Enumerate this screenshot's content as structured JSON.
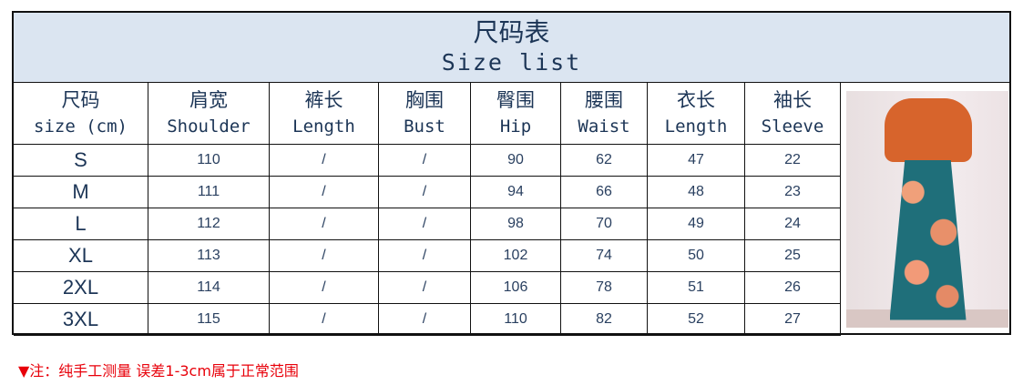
{
  "title_zh": "尺码表",
  "title_en": "Size list",
  "headers": [
    {
      "zh": "尺码",
      "en": "size (cm)"
    },
    {
      "zh": "肩宽",
      "en": "Shoulder"
    },
    {
      "zh": "裤长",
      "en": "Length"
    },
    {
      "zh": "胸围",
      "en": "Bust"
    },
    {
      "zh": "臀围",
      "en": "Hip"
    },
    {
      "zh": "腰围",
      "en": "Waist"
    },
    {
      "zh": "衣长",
      "en": "Length"
    },
    {
      "zh": "袖长",
      "en": "Sleeve"
    }
  ],
  "rows": [
    [
      "S",
      "110",
      "/",
      "/",
      "90",
      "62",
      "47",
      "22"
    ],
    [
      "M",
      "111",
      "/",
      "/",
      "94",
      "66",
      "48",
      "23"
    ],
    [
      "L",
      "112",
      "/",
      "/",
      "98",
      "70",
      "49",
      "24"
    ],
    [
      "XL",
      "113",
      "/",
      "/",
      "102",
      "74",
      "50",
      "25"
    ],
    [
      "2XL",
      "114",
      "/",
      "/",
      "106",
      "78",
      "51",
      "26"
    ],
    [
      "3XL",
      "115",
      "/",
      "/",
      "110",
      "82",
      "52",
      "27"
    ]
  ],
  "note": "▼注：纯手工测量 误差1-3cm属于正常范围",
  "colors": {
    "header_bg": "#dbe5f1",
    "text": "#1c3556",
    "note": "#e8000a"
  }
}
